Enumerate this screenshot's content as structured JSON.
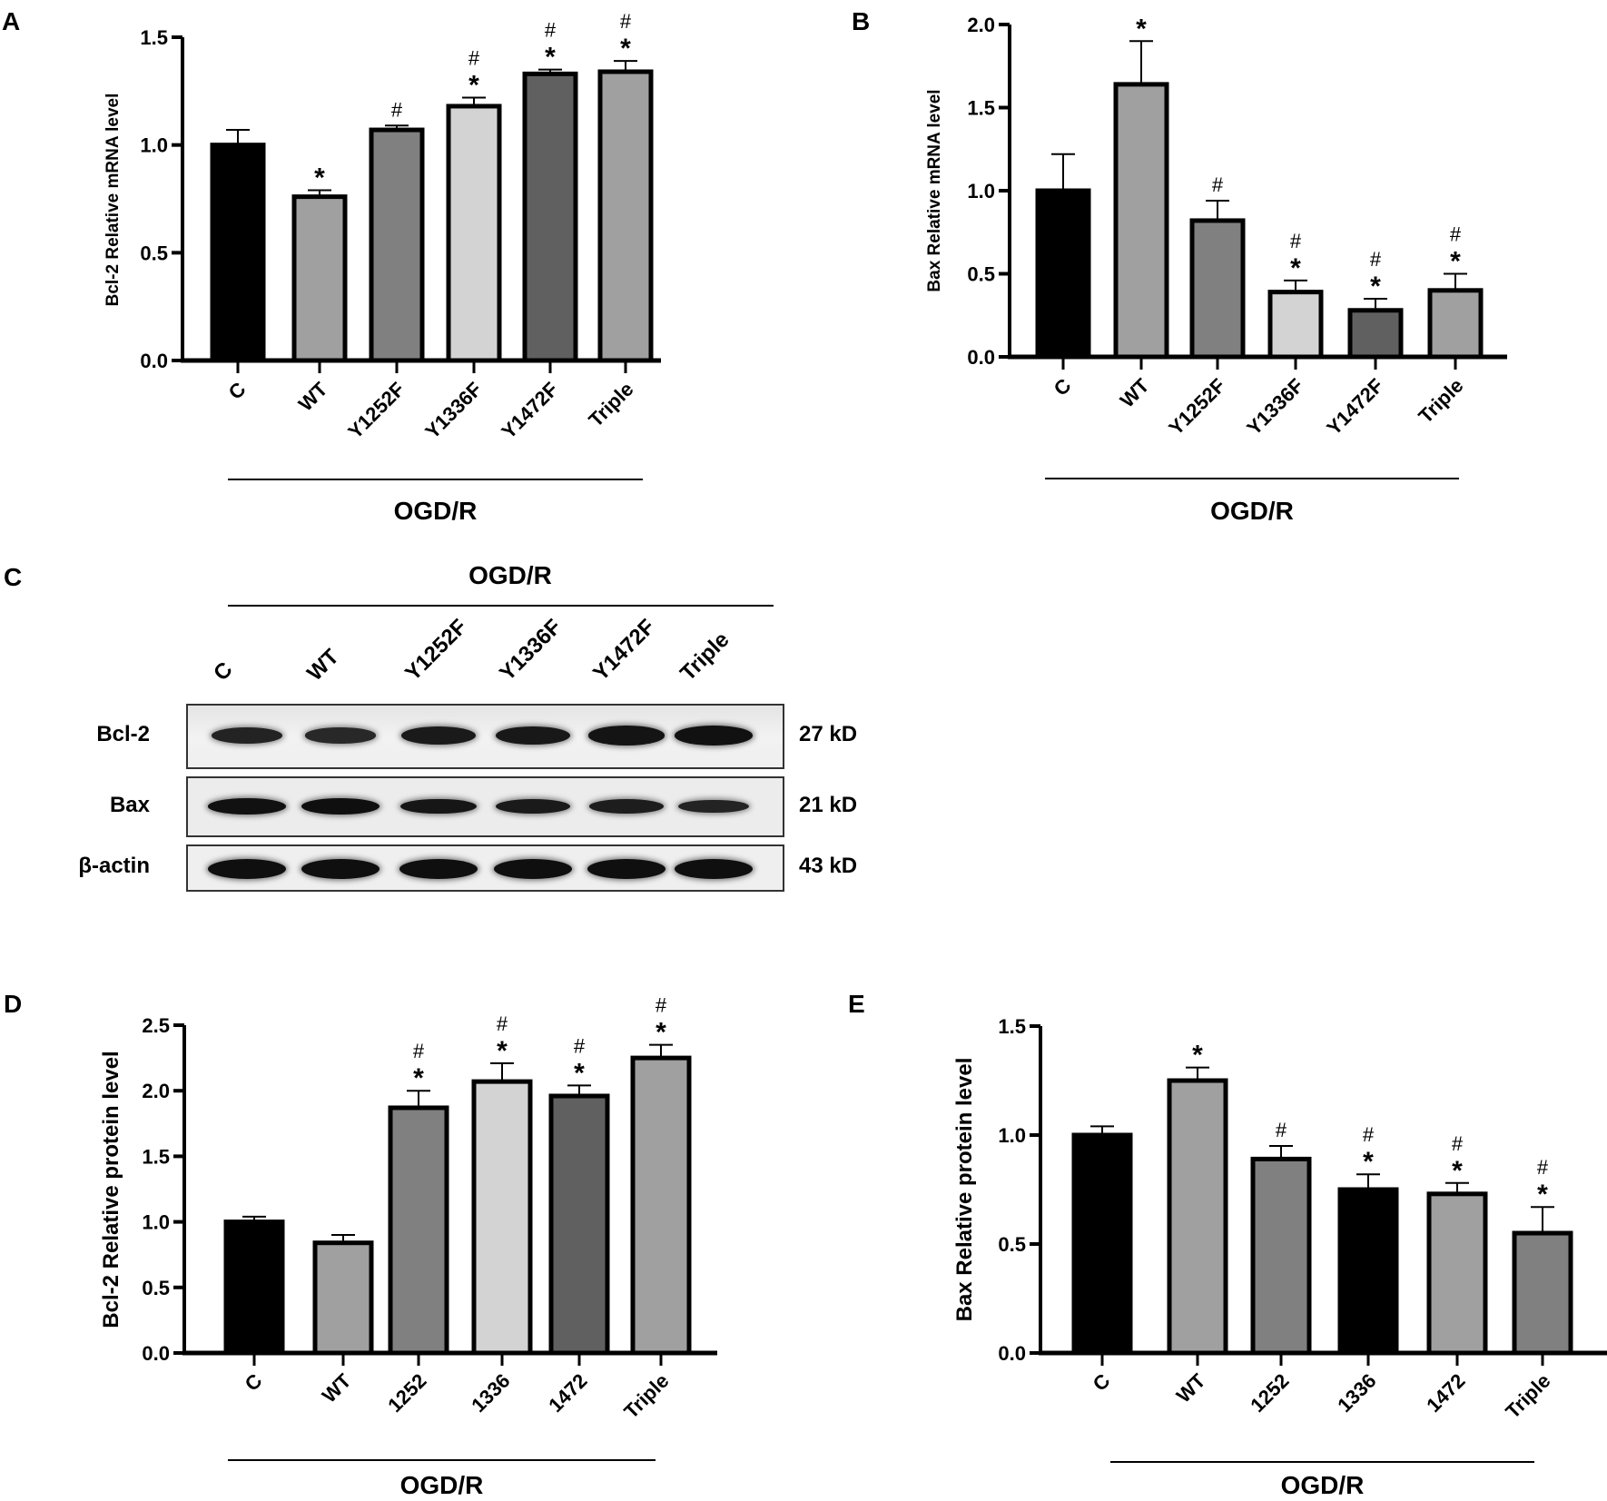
{
  "panels": {
    "A": "A",
    "B": "B",
    "C": "C",
    "D": "D",
    "E": "E"
  },
  "colors": {
    "black": "#000000",
    "mid_gray": "#a0a0a0",
    "gray": "#808080",
    "light_gray": "#d3d3d3",
    "dark_gray": "#606060"
  },
  "chart_data": [
    {
      "id": "A",
      "type": "bar",
      "title": "",
      "xlabel": "",
      "ylabel": "Bcl-2 Relative mRNA level",
      "group_label": "OGD/R",
      "categories": [
        "C",
        "WT",
        "Y1252F",
        "Y1336F",
        "Y1472F",
        "Triple"
      ],
      "values": [
        1.0,
        0.76,
        1.07,
        1.18,
        1.33,
        1.34
      ],
      "errors": [
        0.07,
        0.03,
        0.02,
        0.04,
        0.02,
        0.05
      ],
      "significance": [
        [
          "",
          ""
        ],
        [
          "*",
          ""
        ],
        [
          "",
          "#"
        ],
        [
          "*",
          "#"
        ],
        [
          "*",
          "#"
        ],
        [
          "*",
          "#"
        ]
      ],
      "bar_colors": [
        "#000000",
        "#a0a0a0",
        "#808080",
        "#d3d3d3",
        "#606060",
        "#a0a0a0"
      ],
      "ylim": [
        0,
        1.5
      ],
      "yticks": [
        0.0,
        0.5,
        1.0,
        1.5
      ],
      "ytick_labels": [
        "0.0",
        "0.5",
        "1.0",
        "1.5"
      ],
      "grid": false
    },
    {
      "id": "B",
      "type": "bar",
      "title": "",
      "xlabel": "",
      "ylabel": "Bax Relative mRNA level",
      "group_label": "OGD/R",
      "categories": [
        "C",
        "WT",
        "Y1252F",
        "Y1336F",
        "Y1472F",
        "Triple"
      ],
      "values": [
        1.0,
        1.64,
        0.82,
        0.39,
        0.28,
        0.4
      ],
      "errors": [
        0.22,
        0.26,
        0.12,
        0.07,
        0.07,
        0.1
      ],
      "significance": [
        [
          "",
          ""
        ],
        [
          "*",
          ""
        ],
        [
          "",
          "#"
        ],
        [
          "*",
          "#"
        ],
        [
          "*",
          "#"
        ],
        [
          "*",
          "#"
        ]
      ],
      "bar_colors": [
        "#000000",
        "#a0a0a0",
        "#808080",
        "#d3d3d3",
        "#606060",
        "#a0a0a0"
      ],
      "ylim": [
        0,
        2.0
      ],
      "yticks": [
        0.0,
        0.5,
        1.0,
        1.5,
        2.0
      ],
      "ytick_labels": [
        "0.0",
        "0.5",
        "1.0",
        "1.5",
        "2.0"
      ],
      "grid": false
    },
    {
      "id": "D",
      "type": "bar",
      "title": "",
      "xlabel": "",
      "ylabel": "Bcl-2 Relative protein level",
      "group_label": "OGD/R",
      "categories": [
        "C",
        "WT",
        "1252",
        "1336",
        "1472",
        "Triple"
      ],
      "values": [
        1.0,
        0.84,
        1.87,
        2.07,
        1.96,
        2.25
      ],
      "errors": [
        0.04,
        0.06,
        0.13,
        0.14,
        0.08,
        0.1
      ],
      "significance": [
        [
          "",
          ""
        ],
        [
          "",
          ""
        ],
        [
          "*",
          "#"
        ],
        [
          "*",
          "#"
        ],
        [
          "*",
          "#"
        ],
        [
          "*",
          "#"
        ]
      ],
      "bar_colors": [
        "#000000",
        "#a0a0a0",
        "#808080",
        "#d3d3d3",
        "#606060",
        "#a0a0a0"
      ],
      "ylim": [
        0,
        2.5
      ],
      "yticks": [
        0.0,
        0.5,
        1.0,
        1.5,
        2.0,
        2.5
      ],
      "ytick_labels": [
        "0.0",
        "0.5",
        "1.0",
        "1.5",
        "2.0",
        "2.5"
      ],
      "grid": false
    },
    {
      "id": "E",
      "type": "bar",
      "title": "",
      "xlabel": "",
      "ylabel": "Bax Relative protein level",
      "group_label": "OGD/R",
      "categories": [
        "C",
        "WT",
        "1252",
        "1336",
        "1472",
        "Triple"
      ],
      "values": [
        1.0,
        1.25,
        0.89,
        0.75,
        0.73,
        0.55
      ],
      "errors": [
        0.04,
        0.06,
        0.06,
        0.07,
        0.05,
        0.12
      ],
      "significance": [
        [
          "",
          ""
        ],
        [
          "*",
          ""
        ],
        [
          "",
          "#"
        ],
        [
          "*",
          "#"
        ],
        [
          "*",
          "#"
        ],
        [
          "*",
          "#"
        ]
      ],
      "bar_colors": [
        "#000000",
        "#a0a0a0",
        "#808080",
        "#000000",
        "#a0a0a0",
        "#808080"
      ],
      "ylim": [
        0,
        1.5
      ],
      "yticks": [
        0.0,
        0.5,
        1.0,
        1.5
      ],
      "ytick_labels": [
        "0.0",
        "0.5",
        "1.0",
        "1.5"
      ],
      "grid": false
    }
  ],
  "blot": {
    "group_label": "OGD/R",
    "lanes": [
      "C",
      "WT",
      "Y1252F",
      "Y1336F",
      "Y1472F",
      "Triple"
    ],
    "rows": [
      {
        "protein": "Bcl-2",
        "size": "27 kD",
        "band_intensity": [
          0.55,
          0.45,
          0.75,
          0.8,
          0.9,
          0.95
        ]
      },
      {
        "protein": "Bax",
        "size": "21 kD",
        "band_intensity": [
          0.95,
          1.0,
          0.85,
          0.75,
          0.7,
          0.55
        ]
      },
      {
        "protein": "β-actin",
        "size": "43 kD",
        "band_intensity": [
          1.0,
          1.0,
          1.0,
          1.0,
          1.0,
          1.0
        ]
      }
    ]
  }
}
